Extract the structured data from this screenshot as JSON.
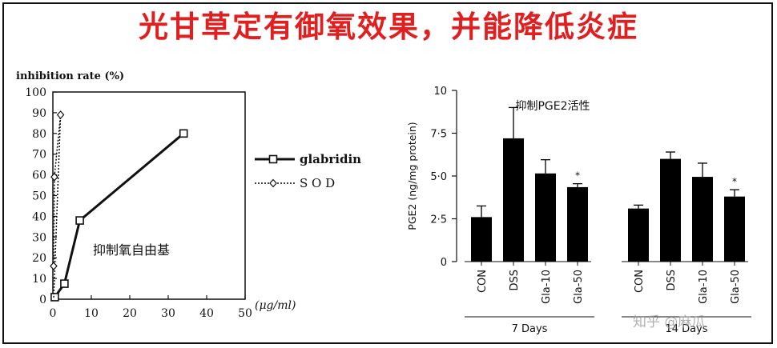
{
  "headline": "光甘草定有御氧效果，并能降低炎症",
  "colors": {
    "headline": "#e02020",
    "bars": "#000000",
    "ink": "#111111"
  },
  "watermark": "知乎 @麻瓜",
  "chart_data": [
    {
      "type": "line",
      "ylabel": "inhibition rate (%)",
      "xlabel": "(μg/ml)",
      "annotation": "抑制氧自由基",
      "xlim": [
        0,
        50
      ],
      "ylim": [
        0,
        100
      ],
      "xticks": [
        0,
        10,
        20,
        30,
        40,
        50
      ],
      "yticks": [
        0,
        10,
        20,
        30,
        40,
        50,
        60,
        70,
        80,
        90,
        100
      ],
      "legend_position": "right",
      "series": [
        {
          "name": "glabridin",
          "style": "solid-square",
          "x": [
            0.5,
            3.0,
            7.0,
            34.0
          ],
          "y": [
            1,
            7.5,
            38,
            80
          ]
        },
        {
          "name": "S O D",
          "style": "dotted-diamond",
          "x": [
            0.2,
            0.4,
            2.0
          ],
          "y": [
            16,
            59,
            89
          ]
        }
      ]
    },
    {
      "type": "bar",
      "ylabel": "PGE2 (ng/mg protein)",
      "title": "抑制PGE2活性",
      "ylim": [
        0,
        10
      ],
      "yticks": [
        "0",
        "2·5",
        "5·0",
        "7·5",
        "10"
      ],
      "groups": [
        {
          "label": "7 Days",
          "categories": [
            "CON",
            "DSS",
            "Gla-10",
            "Gla-50"
          ],
          "values": [
            2.6,
            7.2,
            5.15,
            4.35
          ],
          "errors": [
            0.65,
            1.8,
            0.8,
            0.2
          ],
          "significant": [
            false,
            false,
            false,
            true
          ]
        },
        {
          "label": "14 Days",
          "categories": [
            "CON",
            "DSS",
            "Gla-10",
            "Gla-50"
          ],
          "values": [
            3.1,
            6.0,
            4.95,
            3.8
          ],
          "errors": [
            0.2,
            0.4,
            0.8,
            0.4
          ],
          "significant": [
            false,
            false,
            false,
            true
          ]
        }
      ],
      "significance_mark": "*"
    }
  ]
}
